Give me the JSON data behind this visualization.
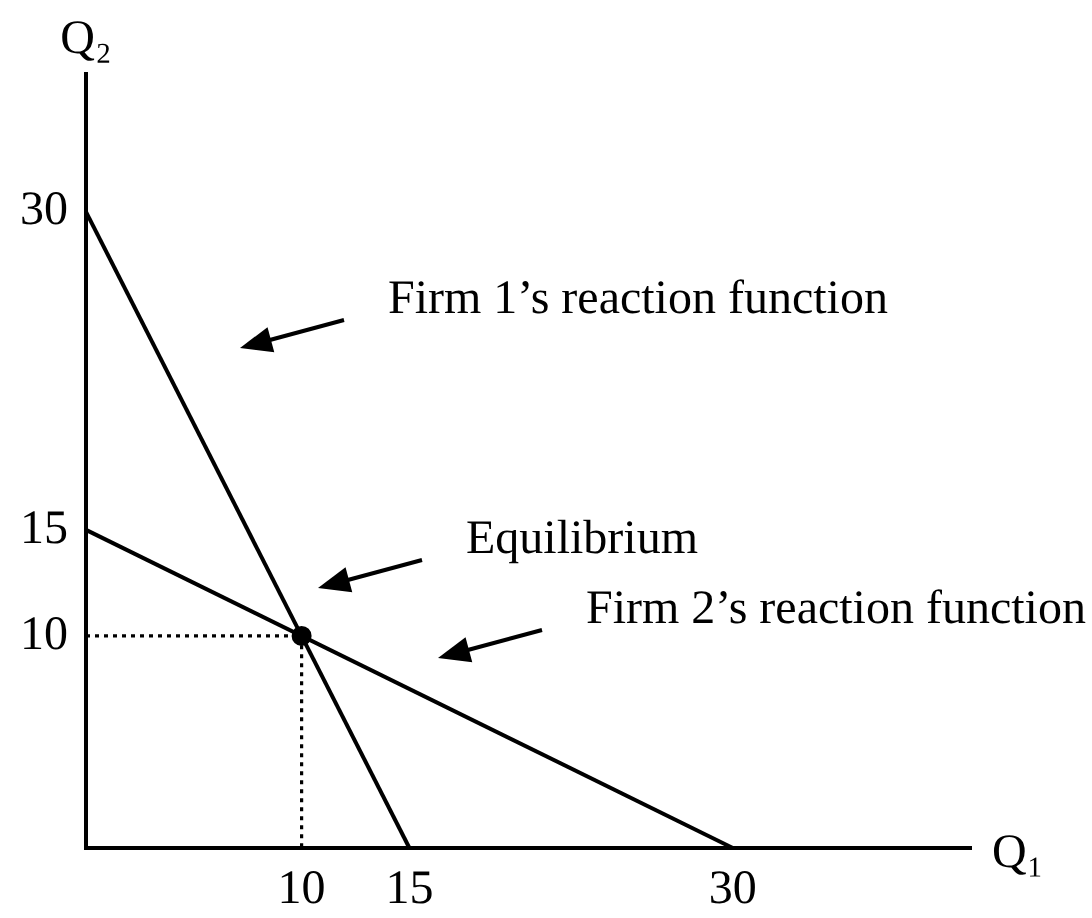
{
  "chart_data": {
    "type": "line",
    "xlabel": "Q₁",
    "ylabel": "Q₂",
    "xlim": [
      0,
      41
    ],
    "ylim": [
      0,
      36.5
    ],
    "xticks": [
      10,
      15,
      30
    ],
    "yticks": [
      10,
      15,
      30
    ],
    "series": [
      {
        "x": [
          0,
          15
        ],
        "values": [
          30,
          0
        ],
        "color": "#000000"
      },
      {
        "x": [
          0,
          30
        ],
        "values": [
          15,
          0
        ],
        "color": "#000000"
      },
      {
        "x": [
          0,
          10,
          10
        ],
        "values": [
          10,
          10,
          0
        ],
        "color": "#000000",
        "line_style": "dotted"
      },
      {
        "type": "scatter",
        "x": [
          10
        ],
        "values": [
          10
        ],
        "color": "#000000",
        "marker": "circle"
      }
    ],
    "annotations": [
      "Firm 1’s reaction function",
      "Equilibrium",
      "Firm 2’s reaction function"
    ]
  }
}
